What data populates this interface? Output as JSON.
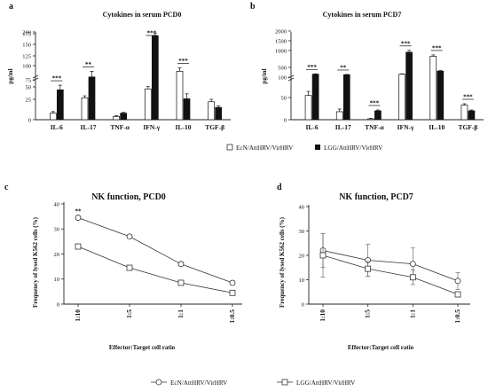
{
  "chart_data": [
    {
      "id": "a",
      "panel_letter": "a",
      "type": "bar",
      "title": "Cytokines in serum PCD0",
      "ylabel": "pg/ml",
      "categories": [
        "IL-6",
        "IL-17",
        "TNF-α",
        "IFN-γ",
        "IL-10",
        "TGF-β"
      ],
      "y_ticks": [
        0,
        25,
        50,
        75,
        100,
        125,
        150,
        175,
        200
      ],
      "ylim": [
        0,
        200
      ],
      "series": [
        {
          "name": "EcN/AttHRV/VirHRV",
          "values": [
            8,
            28,
            4,
            46,
            90,
            22
          ],
          "errors": [
            2,
            4,
            1,
            5,
            6,
            3
          ]
        },
        {
          "name": "LGG/AttHRV/VirHRV",
          "values": [
            44,
            80,
            8,
            170,
            26,
            15
          ],
          "errors": [
            12,
            10,
            1,
            8,
            10,
            2
          ]
        }
      ],
      "significance": [
        {
          "category": "IL-6",
          "label": "***"
        },
        {
          "category": "IL-17",
          "label": "**"
        },
        {
          "category": "IFN-γ",
          "label": "***"
        },
        {
          "category": "IL-10",
          "label": "***"
        }
      ]
    },
    {
      "id": "b",
      "panel_letter": "b",
      "type": "bar",
      "title": "Cytokines in serum PCD7",
      "ylabel": "pg/ml",
      "categories": [
        "IL-6",
        "IL-17",
        "TNF-α",
        "IFN-γ",
        "IL-10",
        "TGF-β"
      ],
      "y_ticks": [
        0,
        50,
        100,
        500,
        1000,
        1500,
        2000
      ],
      "ylim": [
        0,
        2000
      ],
      "series": [
        {
          "name": "EcN/AttHRV/VirHRV",
          "values": [
            55,
            18,
            2,
            220,
            830,
            33
          ],
          "errors": [
            10,
            6,
            1,
            15,
            40,
            3
          ]
        },
        {
          "name": "LGG/AttHRV/VirHRV",
          "values": [
            220,
            200,
            20,
            950,
            350,
            20
          ],
          "errors": [
            15,
            10,
            2,
            60,
            20,
            2
          ]
        }
      ],
      "significance": [
        {
          "category": "IL-6",
          "label": "***"
        },
        {
          "category": "IL-17",
          "label": "**"
        },
        {
          "category": "TNF-α",
          "label": "***"
        },
        {
          "category": "IFN-γ",
          "label": "***"
        },
        {
          "category": "IL-10",
          "label": "***"
        },
        {
          "category": "TGF-β",
          "label": "***"
        }
      ]
    },
    {
      "id": "c",
      "panel_letter": "c",
      "type": "line",
      "title": "NK function, PCD0",
      "xlabel": "Effector:Target cell ratio",
      "ylabel": "Frequency of lysed K562 cells (%)",
      "categories": [
        "1:10",
        "1:5",
        "1:1",
        "1:0.5"
      ],
      "y_ticks": [
        0,
        10,
        20,
        30,
        40
      ],
      "ylim": [
        0,
        40
      ],
      "series": [
        {
          "name": "EcN/AttHRV/VirHRV",
          "marker": "circle",
          "values": [
            34.5,
            27,
            16,
            8.5
          ],
          "errors": [
            0.8,
            0.8,
            0.8,
            0.8
          ]
        },
        {
          "name": "LGG/AttHRV/VirHRV",
          "marker": "square",
          "values": [
            23,
            14.5,
            8.5,
            4.5
          ],
          "errors": [
            0.8,
            0.5,
            0.5,
            0.8
          ]
        }
      ],
      "significance": [
        {
          "category": "1:10",
          "label": "**"
        }
      ]
    },
    {
      "id": "d",
      "panel_letter": "d",
      "type": "line",
      "title": "NK function, PCD7",
      "xlabel": "Effector:Target cell ratio",
      "ylabel": "Frequency of lysed K562 cells (%)",
      "categories": [
        "1:10",
        "1:5",
        "1:1",
        "1:0.5"
      ],
      "y_ticks": [
        0,
        10,
        20,
        30,
        40
      ],
      "ylim": [
        0,
        40
      ],
      "series": [
        {
          "name": "EcN/AttHRV/VirHRV",
          "marker": "circle",
          "values": [
            22,
            18,
            16.5,
            9.5
          ],
          "errors": [
            7,
            6.5,
            6.5,
            3.5
          ]
        },
        {
          "name": "LGG/AttHRV/VirHRV",
          "marker": "square",
          "values": [
            20,
            14.5,
            11,
            4
          ],
          "errors": [
            9,
            3,
            3,
            1
          ]
        }
      ]
    }
  ],
  "legend_top": [
    "EcN/AttHRV/VirHRV",
    "LGG/AttHRV/VirHRV"
  ],
  "legend_bottom": [
    "EcN/AttHRV/VirHRV",
    "LGG/AttHRV/VirHRV"
  ]
}
